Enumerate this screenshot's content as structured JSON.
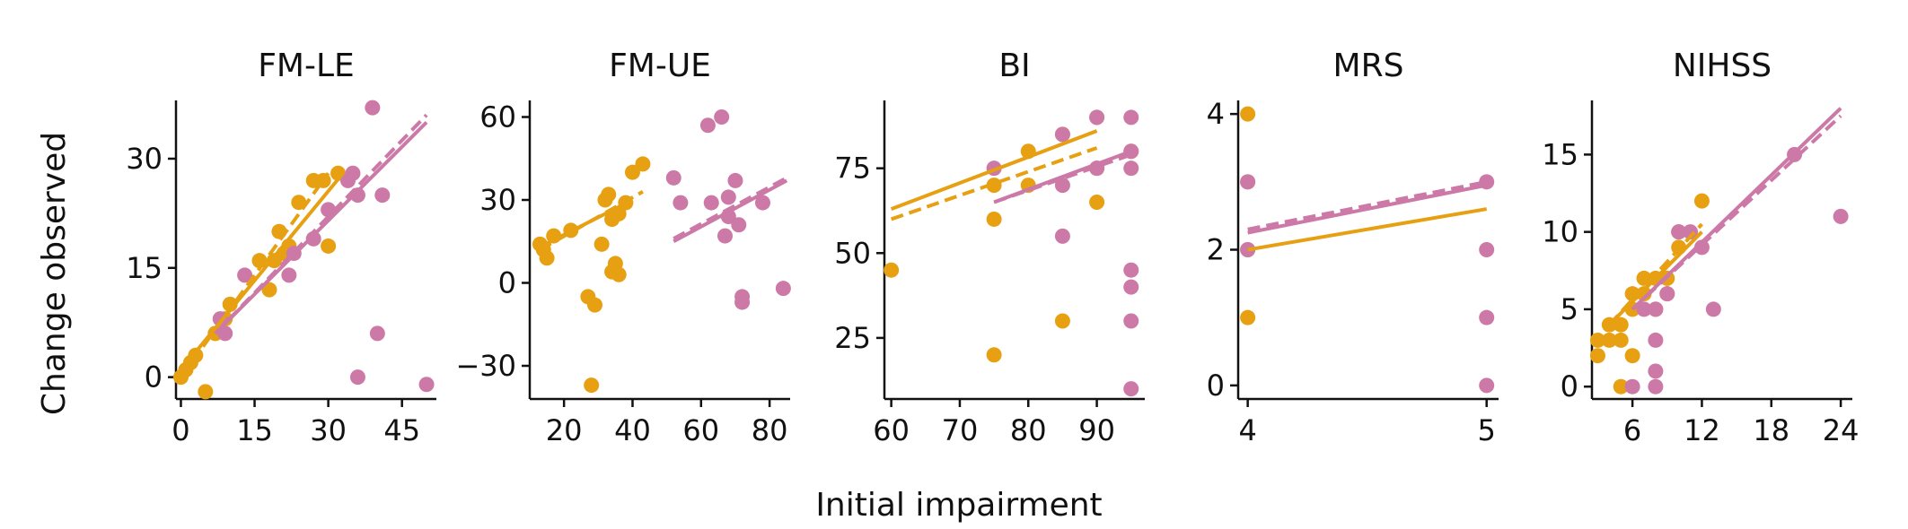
{
  "figure": {
    "xlabel": "Initial impairment",
    "ylabel": "Change observed"
  },
  "colors": {
    "orange": "#E6A012",
    "pink": "#CC79A7"
  },
  "chart_data": [
    {
      "type": "scatter",
      "title": "FM-LE",
      "xlim": [
        -1,
        52
      ],
      "ylim": [
        -3,
        38
      ],
      "xticks": [
        0,
        15,
        30,
        45
      ],
      "yticks": [
        0,
        15,
        30
      ],
      "series": [
        {
          "color": "orange",
          "points": [
            [
              0,
              0
            ],
            [
              1,
              1
            ],
            [
              2,
              2
            ],
            [
              3,
              3
            ],
            [
              5,
              -2
            ],
            [
              7,
              6
            ],
            [
              9,
              8
            ],
            [
              10,
              10
            ],
            [
              16,
              16
            ],
            [
              18,
              12
            ],
            [
              19,
              16
            ],
            [
              20,
              20
            ],
            [
              21,
              17
            ],
            [
              22,
              18
            ],
            [
              24,
              24
            ],
            [
              27,
              27
            ],
            [
              29,
              27
            ],
            [
              30,
              18
            ],
            [
              32,
              28
            ]
          ]
        },
        {
          "color": "pink",
          "points": [
            [
              8,
              8
            ],
            [
              9,
              6
            ],
            [
              13,
              14
            ],
            [
              22,
              14
            ],
            [
              23,
              17
            ],
            [
              27,
              19
            ],
            [
              30,
              23
            ],
            [
              34,
              27
            ],
            [
              35,
              28
            ],
            [
              36,
              0
            ],
            [
              36,
              25
            ],
            [
              39,
              37
            ],
            [
              40,
              6
            ],
            [
              41,
              25
            ],
            [
              50,
              -1
            ]
          ]
        }
      ],
      "lines": [
        {
          "color": "orange",
          "style": "solid",
          "x": [
            0,
            33
          ],
          "y": [
            1,
            28
          ]
        },
        {
          "color": "orange",
          "style": "dashed",
          "x": [
            0,
            30
          ],
          "y": [
            0,
            28
          ]
        },
        {
          "color": "pink",
          "style": "solid",
          "x": [
            7,
            50
          ],
          "y": [
            6,
            35
          ]
        },
        {
          "color": "pink",
          "style": "dashed",
          "x": [
            7,
            50
          ],
          "y": [
            6,
            36
          ]
        }
      ]
    },
    {
      "type": "scatter",
      "title": "FM-UE",
      "xlim": [
        10,
        86
      ],
      "ylim": [
        -42,
        66
      ],
      "xticks": [
        20,
        40,
        60,
        80
      ],
      "yticks": [
        -30,
        0,
        30,
        60
      ],
      "series": [
        {
          "color": "orange",
          "points": [
            [
              13,
              14
            ],
            [
              14,
              12
            ],
            [
              15,
              9
            ],
            [
              17,
              17
            ],
            [
              22,
              19
            ],
            [
              27,
              -5
            ],
            [
              28,
              -37
            ],
            [
              29,
              -8
            ],
            [
              31,
              14
            ],
            [
              32,
              30
            ],
            [
              33,
              32
            ],
            [
              34,
              23
            ],
            [
              34,
              4
            ],
            [
              35,
              7
            ],
            [
              36,
              25
            ],
            [
              36,
              3
            ],
            [
              38,
              29
            ],
            [
              40,
              40
            ],
            [
              43,
              43
            ]
          ]
        },
        {
          "color": "pink",
          "points": [
            [
              52,
              38
            ],
            [
              54,
              29
            ],
            [
              62,
              57
            ],
            [
              63,
              29
            ],
            [
              66,
              60
            ],
            [
              67,
              17
            ],
            [
              68,
              31
            ],
            [
              68,
              24
            ],
            [
              70,
              37
            ],
            [
              71,
              21
            ],
            [
              72,
              -5
            ],
            [
              72,
              -7
            ],
            [
              78,
              29
            ],
            [
              84,
              -2
            ]
          ]
        }
      ],
      "lines": [
        {
          "color": "orange",
          "style": "solid",
          "x": [
            13,
            40
          ],
          "y": [
            13,
            30
          ]
        },
        {
          "color": "orange",
          "style": "dashed",
          "x": [
            13,
            43
          ],
          "y": [
            12,
            33
          ]
        },
        {
          "color": "pink",
          "style": "solid",
          "x": [
            52,
            85
          ],
          "y": [
            15,
            37
          ]
        },
        {
          "color": "pink",
          "style": "dashed",
          "x": [
            52,
            85
          ],
          "y": [
            16,
            38
          ]
        }
      ]
    },
    {
      "type": "scatter",
      "title": "BI",
      "xlim": [
        59,
        97
      ],
      "ylim": [
        7,
        95
      ],
      "xticks": [
        60,
        70,
        80,
        90
      ],
      "yticks": [
        25,
        50,
        75
      ],
      "series": [
        {
          "color": "orange",
          "points": [
            [
              60,
              45
            ],
            [
              75,
              20
            ],
            [
              75,
              60
            ],
            [
              75,
              70
            ],
            [
              80,
              80
            ],
            [
              80,
              70
            ],
            [
              85,
              85
            ],
            [
              85,
              30
            ],
            [
              90,
              90
            ],
            [
              90,
              75
            ],
            [
              90,
              65
            ],
            [
              95,
              80
            ]
          ]
        },
        {
          "color": "pink",
          "points": [
            [
              75,
              75
            ],
            [
              85,
              85
            ],
            [
              85,
              70
            ],
            [
              85,
              55
            ],
            [
              90,
              90
            ],
            [
              90,
              75
            ],
            [
              95,
              90
            ],
            [
              95,
              80
            ],
            [
              95,
              75
            ],
            [
              95,
              45
            ],
            [
              95,
              40
            ],
            [
              95,
              30
            ],
            [
              95,
              10
            ]
          ]
        }
      ],
      "lines": [
        {
          "color": "orange",
          "style": "solid",
          "x": [
            60,
            90
          ],
          "y": [
            63,
            86
          ]
        },
        {
          "color": "orange",
          "style": "dashed",
          "x": [
            60,
            90
          ],
          "y": [
            60,
            81
          ]
        },
        {
          "color": "pink",
          "style": "solid",
          "x": [
            75,
            95
          ],
          "y": [
            65,
            80
          ]
        },
        {
          "color": "pink",
          "style": "dashed",
          "x": [
            75,
            95
          ],
          "y": [
            65,
            79
          ]
        }
      ]
    },
    {
      "type": "scatter",
      "title": "MRS",
      "xlim": [
        3.96,
        5.05
      ],
      "ylim": [
        -0.2,
        4.2
      ],
      "xticks": [
        4,
        5
      ],
      "yticks": [
        0,
        2,
        4
      ],
      "series": [
        {
          "color": "orange",
          "points": [
            [
              4,
              4
            ],
            [
              4,
              3
            ],
            [
              4,
              2
            ],
            [
              4,
              1
            ]
          ]
        },
        {
          "color": "pink",
          "points": [
            [
              4,
              3
            ],
            [
              4,
              2
            ],
            [
              5,
              3
            ],
            [
              5,
              2
            ],
            [
              5,
              1
            ],
            [
              5,
              0
            ]
          ]
        }
      ],
      "lines": [
        {
          "color": "orange",
          "style": "solid",
          "x": [
            4,
            5
          ],
          "y": [
            2.0,
            2.6
          ]
        },
        {
          "color": "pink",
          "style": "solid",
          "x": [
            4,
            5
          ],
          "y": [
            2.25,
            2.95
          ]
        },
        {
          "color": "pink",
          "style": "dashed",
          "x": [
            4,
            5
          ],
          "y": [
            2.3,
            3.0
          ]
        }
      ]
    },
    {
      "type": "scatter",
      "title": "NIHSS",
      "xlim": [
        2.5,
        25
      ],
      "ylim": [
        -0.8,
        18.5
      ],
      "xticks": [
        6,
        12,
        18,
        24
      ],
      "yticks": [
        0,
        5,
        10,
        15
      ],
      "series": [
        {
          "color": "orange",
          "points": [
            [
              3,
              2
            ],
            [
              3,
              3
            ],
            [
              4,
              3
            ],
            [
              4,
              4
            ],
            [
              5,
              0
            ],
            [
              5,
              3
            ],
            [
              5,
              4
            ],
            [
              6,
              2
            ],
            [
              6,
              5
            ],
            [
              6,
              6
            ],
            [
              7,
              6
            ],
            [
              7,
              7
            ],
            [
              8,
              5
            ],
            [
              8,
              7
            ],
            [
              9,
              6
            ],
            [
              9,
              7
            ],
            [
              10,
              9
            ],
            [
              10,
              10
            ],
            [
              12,
              12
            ]
          ]
        },
        {
          "color": "pink",
          "points": [
            [
              6,
              0
            ],
            [
              7,
              5
            ],
            [
              8,
              5
            ],
            [
              8,
              3
            ],
            [
              8,
              1
            ],
            [
              8,
              0
            ],
            [
              9,
              6
            ],
            [
              10,
              10
            ],
            [
              11,
              10
            ],
            [
              12,
              9
            ],
            [
              13,
              5
            ],
            [
              20,
              15
            ],
            [
              24,
              11
            ]
          ]
        }
      ],
      "lines": [
        {
          "color": "orange",
          "style": "solid",
          "x": [
            4,
            12
          ],
          "y": [
            4,
            10
          ]
        },
        {
          "color": "orange",
          "style": "dashed",
          "x": [
            4,
            12
          ],
          "y": [
            4,
            10.5
          ]
        },
        {
          "color": "pink",
          "style": "solid",
          "x": [
            6,
            24
          ],
          "y": [
            5,
            18
          ]
        },
        {
          "color": "pink",
          "style": "dashed",
          "x": [
            6,
            24
          ],
          "y": [
            5,
            17.5
          ]
        }
      ]
    }
  ]
}
